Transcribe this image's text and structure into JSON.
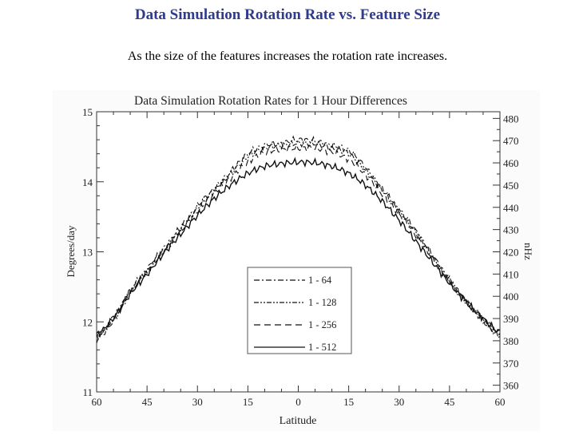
{
  "slide": {
    "title": "Data Simulation Rotation Rate vs. Feature Size",
    "subtitle": "As the size of the features increases the rotation rate increases."
  },
  "chart_data": {
    "type": "line",
    "title": "Data Simulation Rotation Rates for 1 Hour Differences",
    "xlabel": "Latitude",
    "ylabel": "Degrees/day",
    "y2label": "nHz",
    "x_ticks": [
      -60,
      -45,
      -30,
      -15,
      0,
      15,
      30,
      45,
      60
    ],
    "x_tick_labels": [
      "60",
      "45",
      "30",
      "15",
      "0",
      "15",
      "30",
      "45",
      "60"
    ],
    "xlim": [
      -60,
      60
    ],
    "ylim": [
      11,
      15
    ],
    "y_ticks": [
      11,
      12,
      13,
      14,
      15
    ],
    "y_tick_labels": [
      "11",
      "12",
      "13",
      "14",
      "15"
    ],
    "y2_ticks": [
      360,
      370,
      380,
      390,
      400,
      410,
      420,
      430,
      440,
      450,
      460,
      470,
      480
    ],
    "y2_tick_labels": [
      "360",
      "370",
      "380",
      "390",
      "400",
      "410",
      "420",
      "430",
      "440",
      "450",
      "460",
      "470",
      "480"
    ],
    "y2lim": [
      357,
      483
    ],
    "legend_position": "center-bottom",
    "x": [
      -60,
      -55,
      -50,
      -45,
      -40,
      -35,
      -30,
      -25,
      -20,
      -15,
      -10,
      -5,
      0,
      5,
      10,
      15,
      20,
      25,
      30,
      35,
      40,
      45,
      50,
      55,
      60
    ],
    "series": [
      {
        "name": "1 - 64",
        "style": "dash-dot",
        "values": [
          11.78,
          12.05,
          12.45,
          12.75,
          13.05,
          13.35,
          13.65,
          13.9,
          14.15,
          14.4,
          14.52,
          14.55,
          14.6,
          14.58,
          14.52,
          14.45,
          14.2,
          13.9,
          13.6,
          13.3,
          12.95,
          12.6,
          12.3,
          12.05,
          11.82
        ]
      },
      {
        "name": "1 - 128",
        "style": "dash-dot-dot",
        "values": [
          11.75,
          12.02,
          12.42,
          12.72,
          13.02,
          13.32,
          13.62,
          13.88,
          14.12,
          14.36,
          14.48,
          14.52,
          14.55,
          14.54,
          14.48,
          14.4,
          14.16,
          13.88,
          13.58,
          13.28,
          12.92,
          12.58,
          12.28,
          12.02,
          11.8
        ]
      },
      {
        "name": "1 - 256",
        "style": "dash",
        "values": [
          11.8,
          12.06,
          12.43,
          12.72,
          13.02,
          13.3,
          13.58,
          13.84,
          14.06,
          14.28,
          14.42,
          14.46,
          14.48,
          14.48,
          14.42,
          14.32,
          14.1,
          13.82,
          13.54,
          13.24,
          12.9,
          12.58,
          12.28,
          12.03,
          11.82
        ]
      },
      {
        "name": "1 - 512",
        "style": "solid",
        "values": [
          11.82,
          12.05,
          12.4,
          12.68,
          12.98,
          13.25,
          13.52,
          13.76,
          13.96,
          14.12,
          14.22,
          14.26,
          14.28,
          14.27,
          14.22,
          14.12,
          13.95,
          13.72,
          13.45,
          13.15,
          12.85,
          12.55,
          12.28,
          12.05,
          11.85
        ]
      }
    ]
  }
}
